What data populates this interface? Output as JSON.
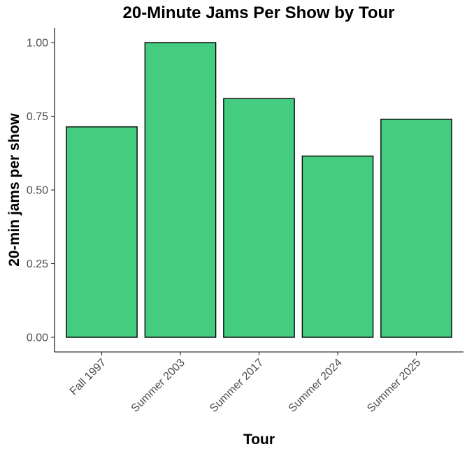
{
  "chart_data": {
    "type": "bar",
    "title": "20-Minute Jams Per Show by Tour",
    "xlabel": "Tour",
    "ylabel": "20-min jams per show",
    "categories": [
      "Fall 1997",
      "Summer 2003",
      "Summer 2017",
      "Summer 2024",
      "Summer 2025"
    ],
    "values": [
      0.714,
      1.0,
      0.81,
      0.615,
      0.74
    ],
    "ylim": [
      0,
      1.05
    ],
    "yticks": [
      0,
      0.25,
      0.5,
      0.75,
      1.0
    ],
    "ytick_labels": [
      "0.00",
      "0.25",
      "0.50",
      "0.75",
      "1.00"
    ],
    "bar_color": "#44CD80",
    "edge_color": "#000000",
    "grid": false,
    "legend": "none"
  }
}
